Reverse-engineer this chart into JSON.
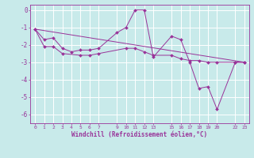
{
  "xlabel": "Windchill (Refroidissement éolien,°C)",
  "background_color": "#c8eaea",
  "grid_color": "#ffffff",
  "line_color": "#993399",
  "xlim": [
    -0.5,
    23.5
  ],
  "ylim": [
    -6.5,
    0.3
  ],
  "xticks": [
    0,
    1,
    2,
    3,
    4,
    5,
    6,
    7,
    9,
    10,
    11,
    12,
    13,
    15,
    16,
    17,
    18,
    19,
    20,
    22,
    23
  ],
  "yticks": [
    0,
    -1,
    -2,
    -3,
    -4,
    -5,
    -6
  ],
  "series1": [
    [
      0,
      -1.1
    ],
    [
      1,
      -1.7
    ],
    [
      2,
      -1.6
    ],
    [
      3,
      -2.2
    ],
    [
      4,
      -2.4
    ],
    [
      5,
      -2.3
    ],
    [
      6,
      -2.3
    ],
    [
      7,
      -2.2
    ],
    [
      9,
      -1.3
    ],
    [
      10,
      -1.0
    ],
    [
      11,
      0.0
    ],
    [
      12,
      0.0
    ],
    [
      13,
      -2.7
    ],
    [
      15,
      -1.5
    ],
    [
      16,
      -1.7
    ],
    [
      17,
      -3.0
    ],
    [
      18,
      -4.5
    ],
    [
      19,
      -4.4
    ],
    [
      20,
      -5.7
    ],
    [
      22,
      -3.0
    ],
    [
      23,
      -3.0
    ]
  ],
  "series2": [
    [
      0,
      -1.1
    ],
    [
      1,
      -2.1
    ],
    [
      2,
      -2.1
    ],
    [
      3,
      -2.5
    ],
    [
      5,
      -2.6
    ],
    [
      6,
      -2.6
    ],
    [
      7,
      -2.5
    ],
    [
      10,
      -2.2
    ],
    [
      11,
      -2.2
    ],
    [
      12,
      -2.4
    ],
    [
      13,
      -2.6
    ],
    [
      15,
      -2.6
    ],
    [
      16,
      -2.8
    ],
    [
      17,
      -2.9
    ],
    [
      18,
      -2.9
    ],
    [
      19,
      -3.0
    ],
    [
      20,
      -3.0
    ],
    [
      22,
      -3.0
    ],
    [
      23,
      -3.0
    ]
  ],
  "series3": [
    [
      0,
      -1.1
    ],
    [
      23,
      -3.0
    ]
  ]
}
